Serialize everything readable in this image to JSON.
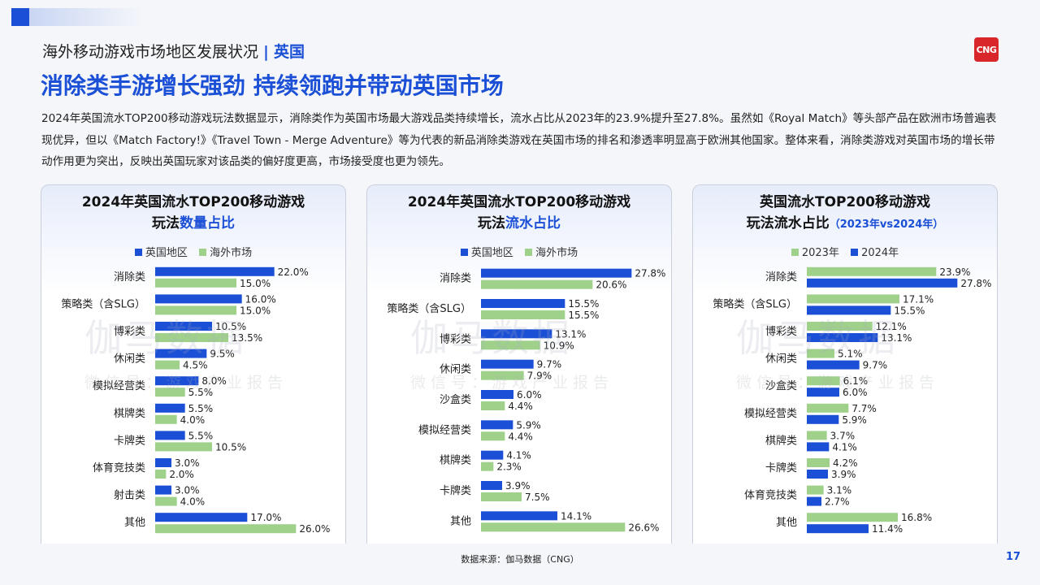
{
  "header": {
    "section_title": "海外移动游戏市场地区发展状况",
    "separator": "|",
    "country": "英国",
    "logo_text": "CNG"
  },
  "headline": "消除类手游增长强劲 持续领跑并带动英国市场",
  "body_text": "2024年英国流水TOP200移动游戏玩法数据显示，消除类作为英国市场最大游戏品类持续增长，流水占比从2023年的23.9%提升至27.8%。虽然如《Royal Match》等头部产品在欧洲市场普遍表现优异，但以《Match Factory!》《Travel Town - Merge Adventure》等为代表的新品消除类游戏在英国市场的排名和渗透率明显高于欧洲其他国家。整体来看，消除类游戏对英国市场的增长带动作用更为突出，反映出英国玩家对该品类的偏好度更高，市场接受度也更为领先。",
  "panels": [
    {
      "title_line1": "2024年英国流水TOP200移动游戏",
      "title_line2_plain": "玩法",
      "title_line2_highlight": "数量占比",
      "title_line2_small": ""
    },
    {
      "title_line1": "2024年英国流水TOP200移动游戏",
      "title_line2_plain": "玩法",
      "title_line2_highlight": "流水占比",
      "title_line2_small": ""
    },
    {
      "title_line1": "英国流水TOP200移动游戏",
      "title_line2_plain": "玩法流水占比",
      "title_line2_highlight": "",
      "title_line2_small": "（2023年vs2024年）"
    }
  ],
  "watermark": {
    "line1": "伽马数据",
    "line2": "微信号：游戏产业报告"
  },
  "colors": {
    "blue": "#1a4fd6",
    "green": "#9fd18b"
  },
  "chart_data": [
    {
      "type": "bar",
      "orientation": "horizontal",
      "categories": [
        "消除类",
        "策略类（含SLG）",
        "博彩类",
        "休闲类",
        "模拟经营类",
        "棋牌类",
        "卡牌类",
        "体育竞技类",
        "射击类",
        "其他"
      ],
      "series": [
        {
          "name": "英国地区",
          "color": "#1a4fd6",
          "values": [
            22.0,
            16.0,
            10.5,
            9.5,
            8.0,
            5.5,
            5.5,
            3.0,
            3.0,
            17.0
          ]
        },
        {
          "name": "海外市场",
          "color": "#9fd18b",
          "values": [
            15.0,
            15.0,
            13.5,
            4.5,
            5.5,
            4.0,
            10.5,
            2.0,
            4.0,
            26.0
          ]
        }
      ],
      "unit": "%",
      "xlim": [
        0,
        28.5
      ]
    },
    {
      "type": "bar",
      "orientation": "horizontal",
      "categories": [
        "消除类",
        "策略类（含SLG）",
        "博彩类",
        "休闲类",
        "沙盒类",
        "模拟经营类",
        "棋牌类",
        "卡牌类",
        "其他"
      ],
      "series": [
        {
          "name": "英国地区",
          "color": "#1a4fd6",
          "values": [
            27.8,
            15.5,
            13.1,
            9.7,
            6.0,
            5.9,
            4.1,
            3.9,
            14.1
          ]
        },
        {
          "name": "海外市场",
          "color": "#9fd18b",
          "values": [
            20.6,
            15.5,
            10.9,
            7.9,
            4.4,
            4.4,
            2.3,
            7.5,
            26.6
          ]
        }
      ],
      "unit": "%",
      "xlim": [
        0,
        28.5
      ]
    },
    {
      "type": "bar",
      "orientation": "horizontal",
      "categories": [
        "消除类",
        "策略类（含SLG）",
        "博彩类",
        "休闲类",
        "沙盒类",
        "模拟经营类",
        "棋牌类",
        "卡牌类",
        "体育竞技类",
        "其他"
      ],
      "series": [
        {
          "name": "2023年",
          "color": "#9fd18b",
          "values": [
            23.9,
            17.1,
            12.1,
            5.1,
            6.1,
            7.7,
            3.7,
            4.2,
            3.1,
            16.8
          ]
        },
        {
          "name": "2024年",
          "color": "#1a4fd6",
          "values": [
            27.8,
            15.5,
            13.1,
            9.7,
            6.0,
            5.9,
            4.1,
            3.9,
            2.7,
            11.4
          ]
        }
      ],
      "unit": "%",
      "xlim": [
        0,
        28.5
      ]
    }
  ],
  "footer": {
    "source": "数据来源：伽马数据（CNG）",
    "page_number": "17"
  }
}
